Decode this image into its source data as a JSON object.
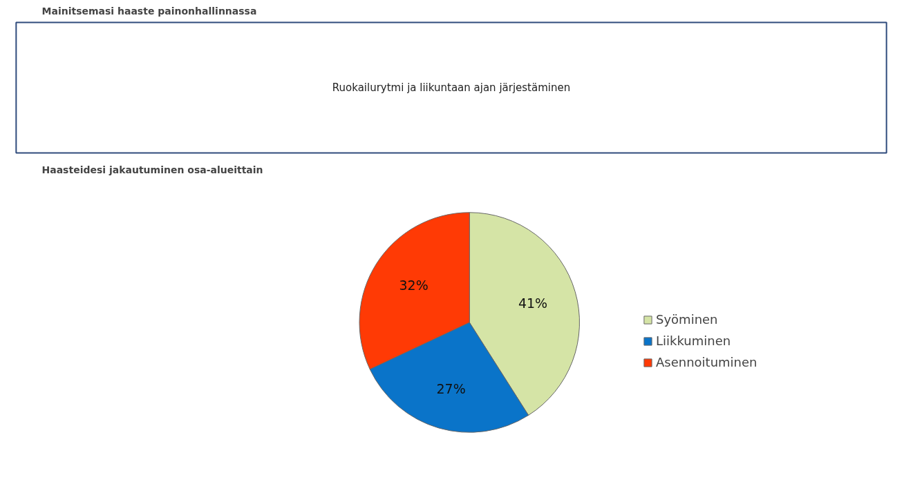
{
  "chart_data": [
    {
      "type": "other",
      "title": "Mainitsemasi haaste painonhallinnassa",
      "annotations": [
        "Ruokailurytmi ja liikuntaan ajan järjestäminen"
      ]
    },
    {
      "type": "pie",
      "title": "Haasteidesi jakautuminen osa-alueittain",
      "categories": [
        "Syöminen",
        "Liikkuminen",
        "Asennoituminen"
      ],
      "values": [
        41,
        27,
        32
      ],
      "colors": [
        "#d5e4a6",
        "#0a74c9",
        "#ff3a05"
      ],
      "value_labels": [
        "41%",
        "27%",
        "32%"
      ],
      "legend": "right"
    }
  ]
}
